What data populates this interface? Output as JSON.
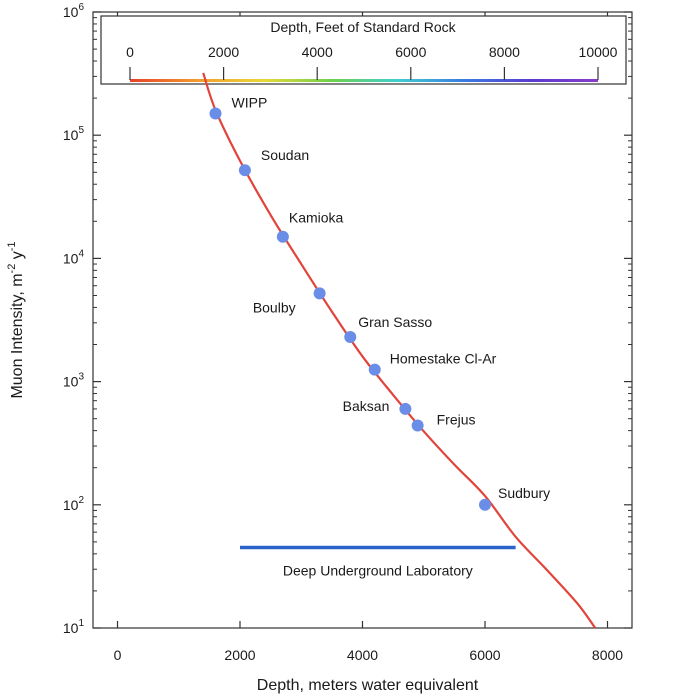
{
  "chart_data": {
    "type": "scatter",
    "title": "",
    "xlabel": "Depth, meters water equivalent",
    "ylabel": {
      "base": "Muon Intensity, m",
      "exp1": "-2",
      "mid": " y",
      "exp2": "-1"
    },
    "xlim": [
      -400,
      8400
    ],
    "ylim_log10": [
      1,
      6
    ],
    "yscale": "log",
    "x_ticks": [
      0,
      2000,
      4000,
      6000,
      8000
    ],
    "x_tick_labels": [
      "0",
      "2000",
      "4000",
      "6000",
      "8000"
    ],
    "y_ticks": [
      {
        "exp": 1,
        "label_base": "10",
        "label_exp": "1"
      },
      {
        "exp": 2,
        "label_base": "10",
        "label_exp": "2"
      },
      {
        "exp": 3,
        "label_base": "10",
        "label_exp": "3"
      },
      {
        "exp": 4,
        "label_base": "10",
        "label_exp": "4"
      },
      {
        "exp": 5,
        "label_base": "10",
        "label_exp": "5"
      },
      {
        "exp": 6,
        "label_base": "10",
        "label_exp": "6"
      }
    ],
    "grid": false,
    "series": [
      {
        "points": [
          {
            "name": "WIPP",
            "x": 1600,
            "y": 150000
          },
          {
            "name": "Soudan",
            "x": 2080,
            "y": 52000
          },
          {
            "name": "Kamioka",
            "x": 2700,
            "y": 15000
          },
          {
            "name": "Boulby",
            "x": 3300,
            "y": 5200
          },
          {
            "name": "Gran Sasso",
            "x": 3800,
            "y": 2300
          },
          {
            "name": "Homestake Cl-Ar",
            "x": 4200,
            "y": 1250
          },
          {
            "name": "Baksan",
            "x": 4700,
            "y": 600
          },
          {
            "name": "Frejus",
            "x": 4900,
            "y": 440
          },
          {
            "name": "Sudbury",
            "x": 6000,
            "y": 100
          }
        ],
        "color": "#6a8ee8"
      }
    ],
    "fit_curve": {
      "color": "#e0443a",
      "points": [
        [
          1400,
          320000
        ],
        [
          1600,
          160000
        ],
        [
          2000,
          62000
        ],
        [
          2500,
          22500
        ],
        [
          3000,
          9000
        ],
        [
          3500,
          3700
        ],
        [
          4000,
          1600
        ],
        [
          4500,
          780
        ],
        [
          5000,
          395
        ],
        [
          5500,
          212
        ],
        [
          6000,
          118
        ],
        [
          6500,
          55
        ],
        [
          7000,
          30
        ],
        [
          7500,
          16
        ],
        [
          7800,
          10
        ]
      ]
    },
    "band": {
      "label": "Deep Underground Laboratory",
      "x_range": [
        2000,
        6500
      ],
      "y": 45,
      "color": "#2a63c9"
    },
    "inset_colorbar": {
      "title": "Depth, Feet of Standard Rock",
      "ticks": [
        0,
        2000,
        4000,
        6000,
        8000,
        10000
      ],
      "tick_labels": [
        "0",
        "2000",
        "4000",
        "6000",
        "8000",
        "10000"
      ],
      "range": [
        0,
        10000
      ],
      "gradient": [
        "#e8402a",
        "#f29b2b",
        "#e8d93a",
        "#6fd14a",
        "#3fcfcf",
        "#3a7be0",
        "#5a3bd0",
        "#8a3bc8"
      ]
    },
    "label_offsets_note": ""
  }
}
